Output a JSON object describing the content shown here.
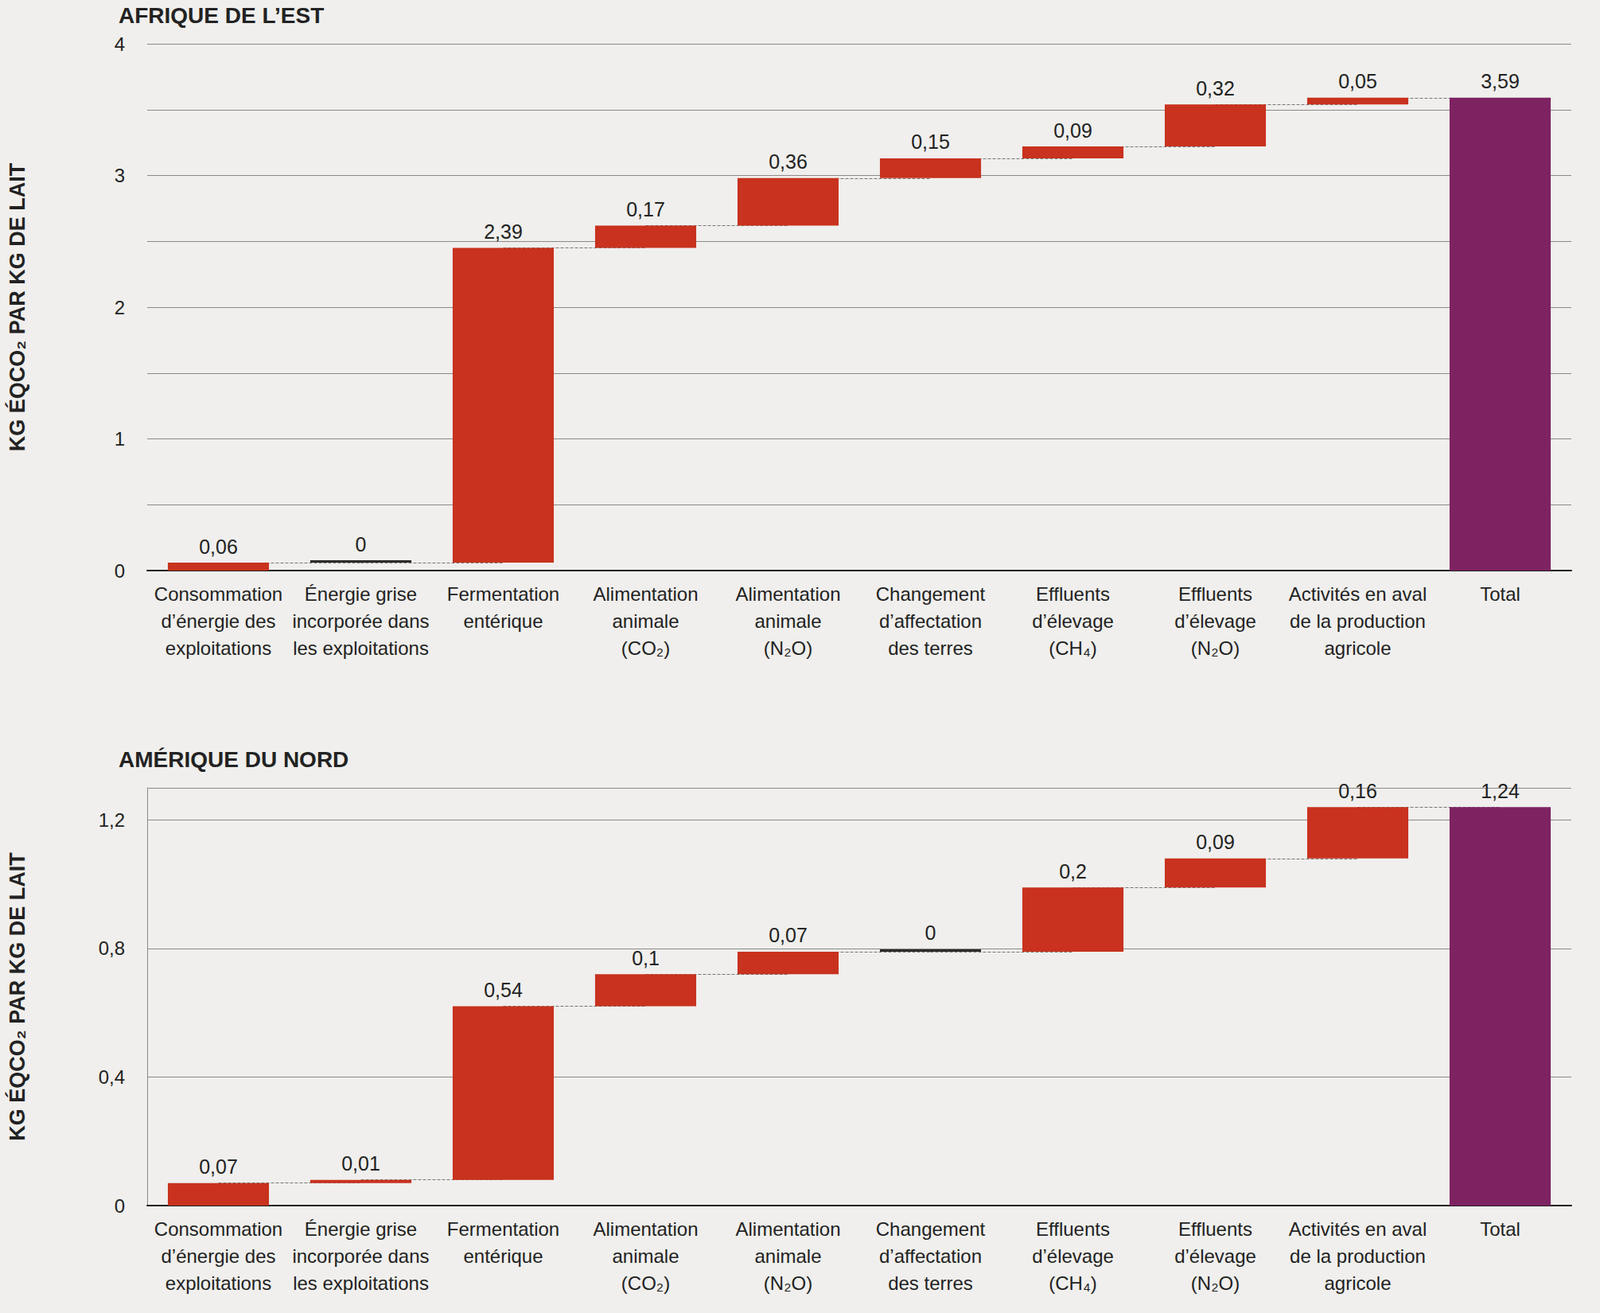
{
  "chart_data": [
    {
      "type": "waterfall",
      "title": "AFRIQUE DE L’EST",
      "y_label": "KG ÉQCO₂ PAR KG DE LAIT",
      "categories": [
        "Consommation\nd’énergie des\nexploitations",
        "Énergie grise\nincorporée dans\nles exploitations",
        "Fermentation\nentérique",
        "Alimentation\nanimale\n(CO₂)",
        "Alimentation\nanimale\n(N₂O)",
        "Changement\nd’affectation\ndes terres",
        "Effluents\nd’élevage\n(CH₄)",
        "Effluents\nd’élevage\n(N₂O)",
        "Activités en aval\nde la production\nagricole",
        "Total"
      ],
      "values": [
        0.06,
        0,
        2.39,
        0.17,
        0.36,
        0.15,
        0.09,
        0.32,
        0.05,
        3.59
      ],
      "value_labels": [
        "0,06",
        "0",
        "2,39",
        "0,17",
        "0,36",
        "0,15",
        "0,09",
        "0,32",
        "0,05",
        "3,59"
      ],
      "colors": [
        "#c8321e",
        "#2b2b2b",
        "#c8321e",
        "#c8321e",
        "#c8321e",
        "#c8321e",
        "#c8321e",
        "#c8321e",
        "#c8321e",
        "#7e2362"
      ],
      "ylim": [
        0,
        4
      ],
      "yticks": [
        0,
        1,
        2,
        3,
        4
      ],
      "grid": true,
      "data_labels": true
    },
    {
      "type": "waterfall",
      "title": "AMÉRIQUE DU NORD",
      "y_label": "KG ÉQCO₂ PAR KG DE LAIT",
      "categories": [
        "Consommation\nd’énergie des\nexploitations",
        "Énergie grise\nincorporée dans\nles exploitations",
        "Fermentation\nentérique",
        "Alimentation\nanimale\n(CO₂)",
        "Alimentation\nanimale\n(N₂O)",
        "Changement\nd’affectation\ndes terres",
        "Effluents\nd’élevage\n(CH₄)",
        "Effluents\nd’élevage\n(N₂O)",
        "Activités en aval\nde la production\nagricole",
        "Total"
      ],
      "values": [
        0.07,
        0.01,
        0.54,
        0.1,
        0.07,
        0,
        0.2,
        0.09,
        0.16,
        1.24
      ],
      "value_labels": [
        "0,07",
        "0,01",
        "0,54",
        "0,1",
        "0,07",
        "0",
        "0,2",
        "0,09",
        "0,16",
        "1,24"
      ],
      "colors": [
        "#c8321e",
        "#c8321e",
        "#c8321e",
        "#c8321e",
        "#c8321e",
        "#2b2b2b",
        "#c8321e",
        "#c8321e",
        "#c8321e",
        "#7e2362"
      ],
      "ylim": [
        0,
        1.3
      ],
      "yticks": [
        0,
        {
          "value": 0.4,
          "label": "0,4"
        },
        {
          "value": 0.8,
          "label": "0,8"
        },
        {
          "value": 1.2,
          "label": "1,2"
        }
      ],
      "grid": true,
      "data_labels": true
    }
  ]
}
